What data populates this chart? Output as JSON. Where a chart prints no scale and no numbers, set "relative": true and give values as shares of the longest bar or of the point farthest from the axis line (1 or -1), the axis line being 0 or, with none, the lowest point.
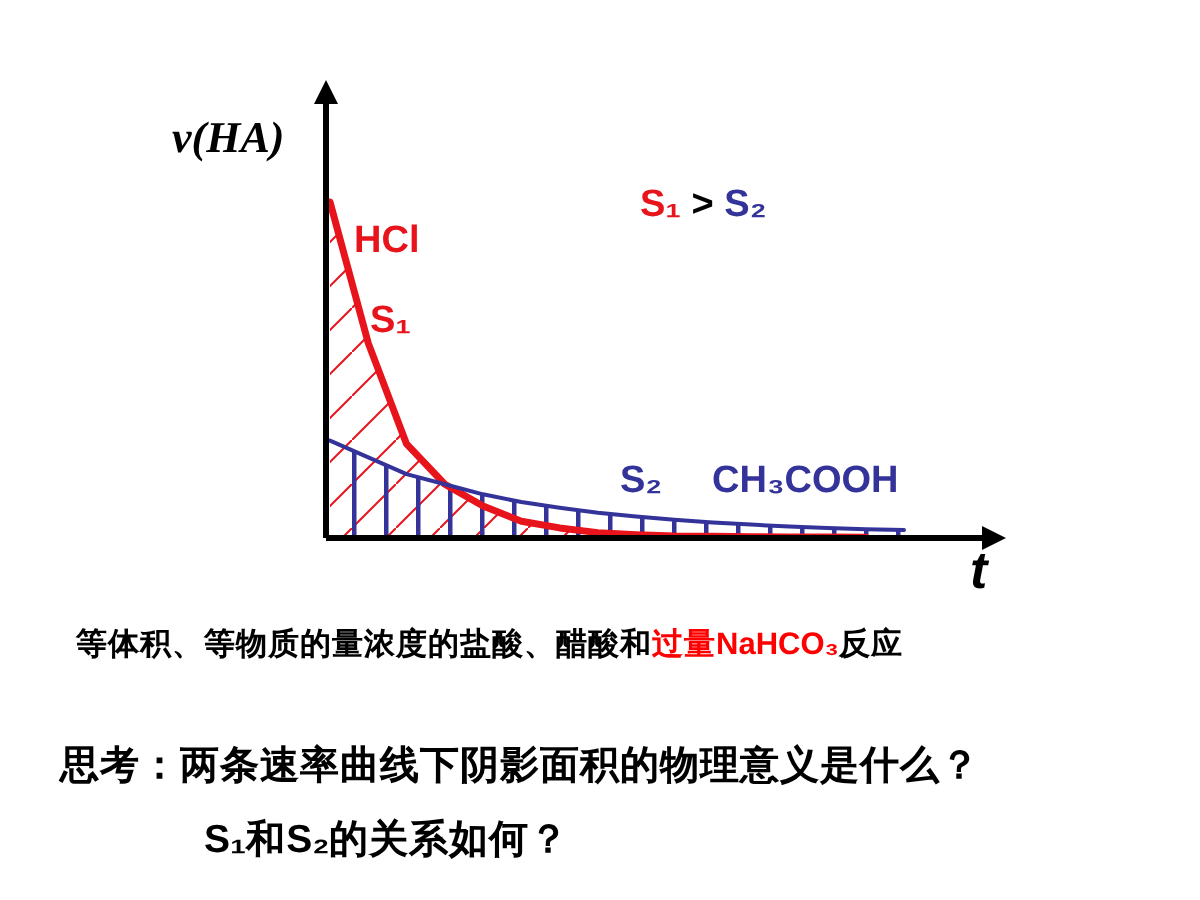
{
  "chart_data": {
    "type": "area",
    "relative": true,
    "xlabel": "t",
    "ylabel": "v(HA)",
    "legend": false,
    "categories": [
      null,
      null,
      null,
      null,
      null,
      null,
      null,
      null,
      null,
      null,
      null,
      null,
      null,
      null,
      null,
      null
    ],
    "series": [
      {
        "name": "HCl",
        "color": "#e8141c",
        "values": [
          1.0,
          0.58,
          0.28,
          0.16,
          0.095,
          0.05,
          0.03,
          0.016,
          0.01,
          0.006,
          0.005,
          0.004,
          0.003,
          0.003,
          0.002,
          null
        ]
      },
      {
        "name": "CH₃COOH",
        "color": "#333399",
        "values": [
          0.29,
          0.24,
          0.19,
          0.16,
          0.13,
          0.107,
          0.09,
          0.075,
          0.064,
          0.054,
          0.046,
          0.04,
          0.034,
          0.03,
          0.026,
          0.024
        ]
      }
    ],
    "annotations": [
      "S₁",
      "S₂",
      "S₁ > S₂",
      "等体积、等物质的量浓度的盐酸、醋酸和",
      "过量NaHCO₃",
      "反应",
      "思考：两条速率曲线下阴影面积的物理意义是什么？",
      "S₁和S₂的关系如何？"
    ]
  }
}
